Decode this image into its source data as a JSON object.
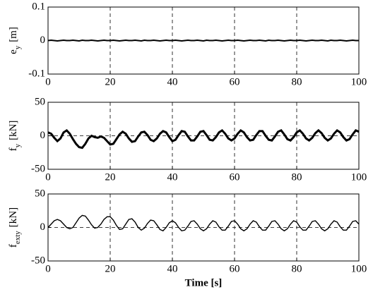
{
  "chart_data": [
    {
      "type": "line",
      "ylabel": [
        "e",
        "y",
        "[m]"
      ],
      "x": [
        0,
        1,
        2,
        3,
        4,
        5,
        6,
        7,
        8,
        9,
        10,
        11,
        12,
        13,
        14,
        15,
        16,
        17,
        18,
        19,
        20,
        21,
        22,
        23,
        24,
        25,
        26,
        27,
        28,
        29,
        30,
        31,
        32,
        33,
        34,
        35,
        36,
        37,
        38,
        39,
        40,
        41,
        42,
        43,
        44,
        45,
        46,
        47,
        48,
        49,
        50,
        51,
        52,
        53,
        54,
        55,
        56,
        57,
        58,
        59,
        60,
        61,
        62,
        63,
        64,
        65,
        66,
        67,
        68,
        69,
        70,
        71,
        72,
        73,
        74,
        75,
        76,
        77,
        78,
        79,
        80,
        81,
        82,
        83,
        84,
        85,
        86,
        87,
        88,
        89,
        90,
        91,
        92,
        93,
        94,
        95,
        96,
        97,
        98,
        99,
        100
      ],
      "values": [
        0,
        0.001,
        0,
        -0.001,
        0,
        0.001,
        0,
        0,
        0.001,
        0,
        -0.001,
        0.001,
        0,
        0,
        0.001,
        0,
        -0.001,
        0,
        0.001,
        0,
        0,
        0.001,
        0,
        -0.001,
        0,
        0.001,
        0,
        0,
        0.001,
        0,
        -0.001,
        0.001,
        0,
        0,
        0.001,
        0,
        -0.001,
        0,
        0.001,
        0,
        0,
        0.001,
        0,
        -0.001,
        0,
        0.001,
        0,
        0,
        0.001,
        0,
        -0.001,
        0.001,
        0,
        0,
        0.001,
        0,
        -0.001,
        0,
        0.001,
        0,
        0,
        0.001,
        0,
        -0.001,
        0,
        0.001,
        0,
        0,
        0.001,
        0,
        -0.001,
        0.001,
        0,
        0,
        0.001,
        0,
        -0.001,
        0,
        0.001,
        0,
        0,
        0.001,
        0,
        -0.001,
        0,
        0.001,
        0,
        0,
        0.001,
        0,
        -0.001,
        0.001,
        0,
        0,
        0.001,
        0,
        -0.001,
        0,
        0.001,
        0,
        0
      ],
      "color": "#000000",
      "xlim": [
        0,
        100
      ],
      "xticks": [
        0,
        20,
        40,
        60,
        80,
        100
      ],
      "ylim": [
        -0.1,
        0.1
      ],
      "yticks": [
        -0.1,
        0,
        0.1
      ],
      "grid": true
    },
    {
      "type": "line",
      "ylabel": [
        "f",
        "y",
        "[kN]"
      ],
      "x": [
        0,
        1,
        2,
        3,
        4,
        5,
        6,
        7,
        8,
        9,
        10,
        11,
        12,
        13,
        14,
        15,
        16,
        17,
        18,
        19,
        20,
        21,
        22,
        23,
        24,
        25,
        26,
        27,
        28,
        29,
        30,
        31,
        32,
        33,
        34,
        35,
        36,
        37,
        38,
        39,
        40,
        41,
        42,
        43,
        44,
        45,
        46,
        47,
        48,
        49,
        50,
        51,
        52,
        53,
        54,
        55,
        56,
        57,
        58,
        59,
        60,
        61,
        62,
        63,
        64,
        65,
        66,
        67,
        68,
        69,
        70,
        71,
        72,
        73,
        74,
        75,
        76,
        77,
        78,
        79,
        80,
        81,
        82,
        83,
        84,
        85,
        86,
        87,
        88,
        89,
        90,
        91,
        92,
        93,
        94,
        95,
        96,
        97,
        98,
        99,
        100
      ],
      "values": [
        5,
        3,
        -3,
        -8,
        -4,
        5,
        8,
        3,
        -5,
        -12,
        -17,
        -18,
        -12,
        -4,
        0,
        -2,
        -3,
        -1,
        -3,
        -8,
        -13,
        -12,
        -5,
        2,
        6,
        3,
        -4,
        -9,
        -8,
        -1,
        5,
        6,
        1,
        -6,
        -8,
        -4,
        3,
        7,
        5,
        -2,
        -8,
        -6,
        1,
        7,
        6,
        -1,
        -7,
        -7,
        -1,
        6,
        7,
        1,
        -6,
        -7,
        -2,
        5,
        8,
        3,
        -4,
        -7,
        -4,
        3,
        8,
        5,
        -2,
        -7,
        -6,
        1,
        7,
        7,
        0,
        -6,
        -7,
        -1,
        6,
        8,
        2,
        -5,
        -7,
        -2,
        5,
        8,
        3,
        -4,
        -7,
        -3,
        4,
        8,
        4,
        -3,
        -7,
        -4,
        3,
        8,
        5,
        -2,
        -7,
        -5,
        2,
        8,
        6
      ],
      "color": "#000000",
      "xlim": [
        0,
        100
      ],
      "xticks": [
        0,
        20,
        40,
        60,
        80,
        100
      ],
      "ylim": [
        -50,
        50
      ],
      "yticks": [
        -50,
        0,
        50
      ],
      "grid": true
    },
    {
      "type": "line",
      "ylabel": [
        "f",
        "exty",
        "[kN]"
      ],
      "xlabel": "Time [s]",
      "x": [
        0,
        1,
        2,
        3,
        4,
        5,
        6,
        7,
        8,
        9,
        10,
        11,
        12,
        13,
        14,
        15,
        16,
        17,
        18,
        19,
        20,
        21,
        22,
        23,
        24,
        25,
        26,
        27,
        28,
        29,
        30,
        31,
        32,
        33,
        34,
        35,
        36,
        37,
        38,
        39,
        40,
        41,
        42,
        43,
        44,
        45,
        46,
        47,
        48,
        49,
        50,
        51,
        52,
        53,
        54,
        55,
        56,
        57,
        58,
        59,
        60,
        61,
        62,
        63,
        64,
        65,
        66,
        67,
        68,
        69,
        70,
        71,
        72,
        73,
        74,
        75,
        76,
        77,
        78,
        79,
        80,
        81,
        82,
        83,
        84,
        85,
        86,
        87,
        88,
        89,
        90,
        91,
        92,
        93,
        94,
        95,
        96,
        97,
        98,
        99,
        100
      ],
      "values": [
        0,
        5,
        10,
        12,
        10,
        5,
        0,
        -2,
        0,
        7,
        14,
        18,
        17,
        11,
        4,
        -1,
        0,
        5,
        12,
        16,
        16,
        11,
        3,
        -3,
        -2,
        5,
        12,
        13,
        8,
        0,
        -4,
        -1,
        6,
        11,
        10,
        4,
        -3,
        -5,
        0,
        7,
        10,
        7,
        0,
        -5,
        -4,
        2,
        9,
        10,
        5,
        -2,
        -5,
        -2,
        5,
        10,
        8,
        1,
        -4,
        -4,
        2,
        9,
        10,
        5,
        -2,
        -5,
        -2,
        5,
        10,
        8,
        1,
        -4,
        -4,
        2,
        9,
        10,
        5,
        -2,
        -5,
        -2,
        5,
        10,
        8,
        1,
        -4,
        -4,
        2,
        9,
        10,
        5,
        -2,
        -5,
        -2,
        5,
        10,
        8,
        1,
        -4,
        -4,
        2,
        9,
        10,
        5
      ],
      "color": "#000000",
      "xlim": [
        0,
        100
      ],
      "xticks": [
        0,
        20,
        40,
        60,
        80,
        100
      ],
      "ylim": [
        -50,
        50
      ],
      "yticks": [
        -50,
        0,
        50
      ],
      "grid": true
    }
  ]
}
